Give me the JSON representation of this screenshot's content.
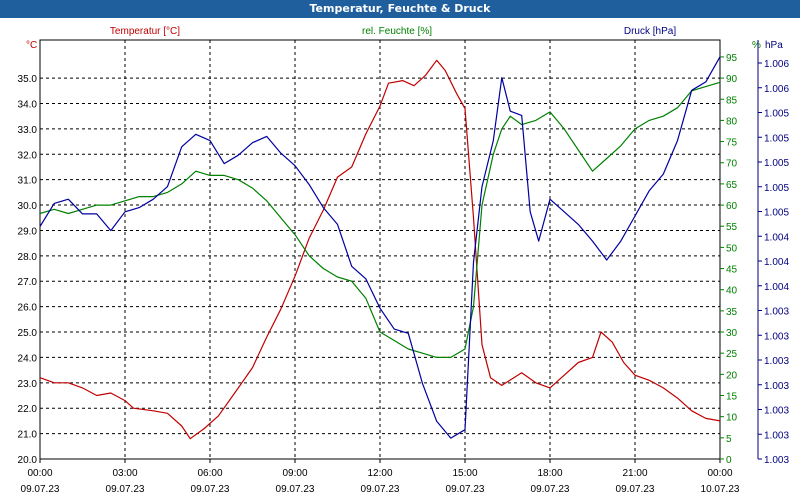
{
  "title": "Temperatur, Feuchte & Druck",
  "chart_data": {
    "type": "line",
    "title": "Temperatur, Feuchte & Druck",
    "x_tick_times": [
      "00:00",
      "03:00",
      "06:00",
      "09:00",
      "12:00",
      "15:00",
      "18:00",
      "21:00",
      "00:00"
    ],
    "x_tick_dates": [
      "09.07.23",
      "09.07.23",
      "09.07.23",
      "09.07.23",
      "09.07.23",
      "09.07.23",
      "09.07.23",
      "09.07.23",
      "10.07.23"
    ],
    "xlim_hours": [
      0,
      24
    ],
    "axes": {
      "temperature": {
        "label": "Temperatur [°C]",
        "unit": "°C",
        "color": "#c00000",
        "ylim": [
          20.0,
          36.5
        ],
        "ticks": [
          "20.0",
          "21.0",
          "22.0",
          "23.0",
          "24.0",
          "25.0",
          "26.0",
          "27.0",
          "28.0",
          "29.0",
          "30.0",
          "31.0",
          "32.0",
          "33.0",
          "34.0",
          "35.0"
        ]
      },
      "humidity": {
        "label": "rel. Feuchte [%]",
        "unit": "%",
        "color": "#008000",
        "ylim": [
          0,
          99
        ],
        "ticks": [
          "0",
          "5",
          "10",
          "15",
          "20",
          "25",
          "30",
          "35",
          "40",
          "45",
          "50",
          "55",
          "60",
          "65",
          "70",
          "75",
          "80",
          "85",
          "90",
          "95"
        ]
      },
      "pressure": {
        "label": "Druck [hPa]",
        "unit": "hPa",
        "color": "#000080",
        "ticks": [
          "1.003",
          "1.003",
          "1.003",
          "1.003",
          "1.003",
          "1.003",
          "1.003",
          "1.004",
          "1.004",
          "1.004",
          "1.005",
          "1.005",
          "1.005",
          "1.005",
          "1.005",
          "1.006",
          "1.006"
        ]
      }
    },
    "grid": true,
    "series": [
      {
        "name": "Temperatur [°C]",
        "axis": "temperature",
        "color": "#c00000",
        "points": [
          [
            0,
            23.2
          ],
          [
            0.5,
            23.0
          ],
          [
            1.0,
            23.0
          ],
          [
            1.5,
            22.8
          ],
          [
            2.0,
            22.5
          ],
          [
            2.5,
            22.6
          ],
          [
            3.0,
            22.3
          ],
          [
            3.3,
            22.0
          ],
          [
            4.0,
            21.9
          ],
          [
            4.5,
            21.8
          ],
          [
            5.0,
            21.3
          ],
          [
            5.3,
            20.8
          ],
          [
            5.8,
            21.2
          ],
          [
            6.3,
            21.7
          ],
          [
            7.0,
            22.8
          ],
          [
            7.5,
            23.6
          ],
          [
            8.0,
            24.8
          ],
          [
            8.5,
            25.9
          ],
          [
            9.0,
            27.2
          ],
          [
            9.5,
            28.7
          ],
          [
            10.0,
            29.8
          ],
          [
            10.5,
            31.1
          ],
          [
            11.0,
            31.5
          ],
          [
            11.5,
            32.8
          ],
          [
            12.0,
            33.9
          ],
          [
            12.3,
            34.8
          ],
          [
            12.8,
            34.9
          ],
          [
            13.2,
            34.7
          ],
          [
            13.6,
            35.1
          ],
          [
            14.0,
            35.7
          ],
          [
            14.3,
            35.3
          ],
          [
            14.7,
            34.4
          ],
          [
            15.0,
            33.8
          ],
          [
            15.3,
            29.5
          ],
          [
            15.6,
            24.5
          ],
          [
            15.9,
            23.2
          ],
          [
            16.3,
            22.9
          ],
          [
            17.0,
            23.4
          ],
          [
            17.5,
            23.0
          ],
          [
            18.0,
            22.8
          ],
          [
            18.5,
            23.3
          ],
          [
            19.0,
            23.8
          ],
          [
            19.5,
            24.0
          ],
          [
            19.8,
            25.0
          ],
          [
            20.2,
            24.6
          ],
          [
            20.6,
            23.8
          ],
          [
            21.0,
            23.3
          ],
          [
            21.5,
            23.1
          ],
          [
            22.0,
            22.8
          ],
          [
            22.5,
            22.4
          ],
          [
            23.0,
            21.9
          ],
          [
            23.5,
            21.6
          ],
          [
            24.0,
            21.5
          ]
        ]
      },
      {
        "name": "rel. Feuchte [%]",
        "axis": "humidity",
        "color": "#008000",
        "points": [
          [
            0,
            58
          ],
          [
            0.5,
            59
          ],
          [
            1.0,
            58
          ],
          [
            1.5,
            59
          ],
          [
            2.0,
            60
          ],
          [
            2.5,
            60
          ],
          [
            3.0,
            61
          ],
          [
            3.5,
            62
          ],
          [
            4.0,
            62
          ],
          [
            4.5,
            63
          ],
          [
            5.0,
            65
          ],
          [
            5.5,
            68
          ],
          [
            6.0,
            67
          ],
          [
            6.5,
            67
          ],
          [
            7.0,
            66
          ],
          [
            7.5,
            64
          ],
          [
            8.0,
            61
          ],
          [
            8.5,
            57
          ],
          [
            9.0,
            53
          ],
          [
            9.5,
            48
          ],
          [
            10.0,
            45
          ],
          [
            10.5,
            43
          ],
          [
            11.0,
            42
          ],
          [
            11.5,
            38
          ],
          [
            12.0,
            30
          ],
          [
            12.5,
            28
          ],
          [
            13.0,
            26
          ],
          [
            13.5,
            25
          ],
          [
            14.0,
            24
          ],
          [
            14.5,
            24
          ],
          [
            15.0,
            26
          ],
          [
            15.3,
            36
          ],
          [
            15.6,
            60
          ],
          [
            16.0,
            72
          ],
          [
            16.3,
            78
          ],
          [
            16.6,
            81
          ],
          [
            17.0,
            79
          ],
          [
            17.5,
            80
          ],
          [
            18.0,
            82
          ],
          [
            18.5,
            78
          ],
          [
            19.0,
            73
          ],
          [
            19.5,
            68
          ],
          [
            20.0,
            71
          ],
          [
            20.5,
            74
          ],
          [
            21.0,
            78
          ],
          [
            21.5,
            80
          ],
          [
            22.0,
            81
          ],
          [
            22.5,
            83
          ],
          [
            23.0,
            87
          ],
          [
            23.5,
            88
          ],
          [
            24.0,
            89
          ]
        ]
      },
      {
        "name": "Druck [hPa]",
        "axis": "pressure",
        "color": "#0000a0",
        "points": [
          [
            0,
            0.555
          ],
          [
            0.5,
            0.61
          ],
          [
            1.0,
            0.62
          ],
          [
            1.5,
            0.585
          ],
          [
            2.0,
            0.585
          ],
          [
            2.5,
            0.545
          ],
          [
            3.0,
            0.59
          ],
          [
            3.5,
            0.6
          ],
          [
            4.0,
            0.62
          ],
          [
            4.5,
            0.65
          ],
          [
            5.0,
            0.745
          ],
          [
            5.5,
            0.775
          ],
          [
            6.0,
            0.76
          ],
          [
            6.5,
            0.705
          ],
          [
            7.0,
            0.725
          ],
          [
            7.5,
            0.755
          ],
          [
            8.0,
            0.77
          ],
          [
            8.5,
            0.73
          ],
          [
            9.0,
            0.7
          ],
          [
            9.5,
            0.655
          ],
          [
            10.0,
            0.6
          ],
          [
            10.5,
            0.56
          ],
          [
            11.0,
            0.46
          ],
          [
            11.5,
            0.43
          ],
          [
            12.0,
            0.36
          ],
          [
            12.5,
            0.31
          ],
          [
            13.0,
            0.3
          ],
          [
            13.5,
            0.18
          ],
          [
            14.0,
            0.09
          ],
          [
            14.5,
            0.05
          ],
          [
            15.0,
            0.07
          ],
          [
            15.3,
            0.47
          ],
          [
            15.6,
            0.65
          ],
          [
            16.0,
            0.76
          ],
          [
            16.3,
            0.91
          ],
          [
            16.6,
            0.83
          ],
          [
            17.0,
            0.82
          ],
          [
            17.3,
            0.59
          ],
          [
            17.6,
            0.52
          ],
          [
            18.0,
            0.62
          ],
          [
            18.5,
            0.59
          ],
          [
            19.0,
            0.56
          ],
          [
            19.5,
            0.52
          ],
          [
            20.0,
            0.475
          ],
          [
            20.5,
            0.52
          ],
          [
            21.0,
            0.58
          ],
          [
            21.5,
            0.64
          ],
          [
            22.0,
            0.68
          ],
          [
            22.5,
            0.76
          ],
          [
            23.0,
            0.88
          ],
          [
            23.5,
            0.9
          ],
          [
            24.0,
            0.96
          ]
        ]
      }
    ]
  }
}
